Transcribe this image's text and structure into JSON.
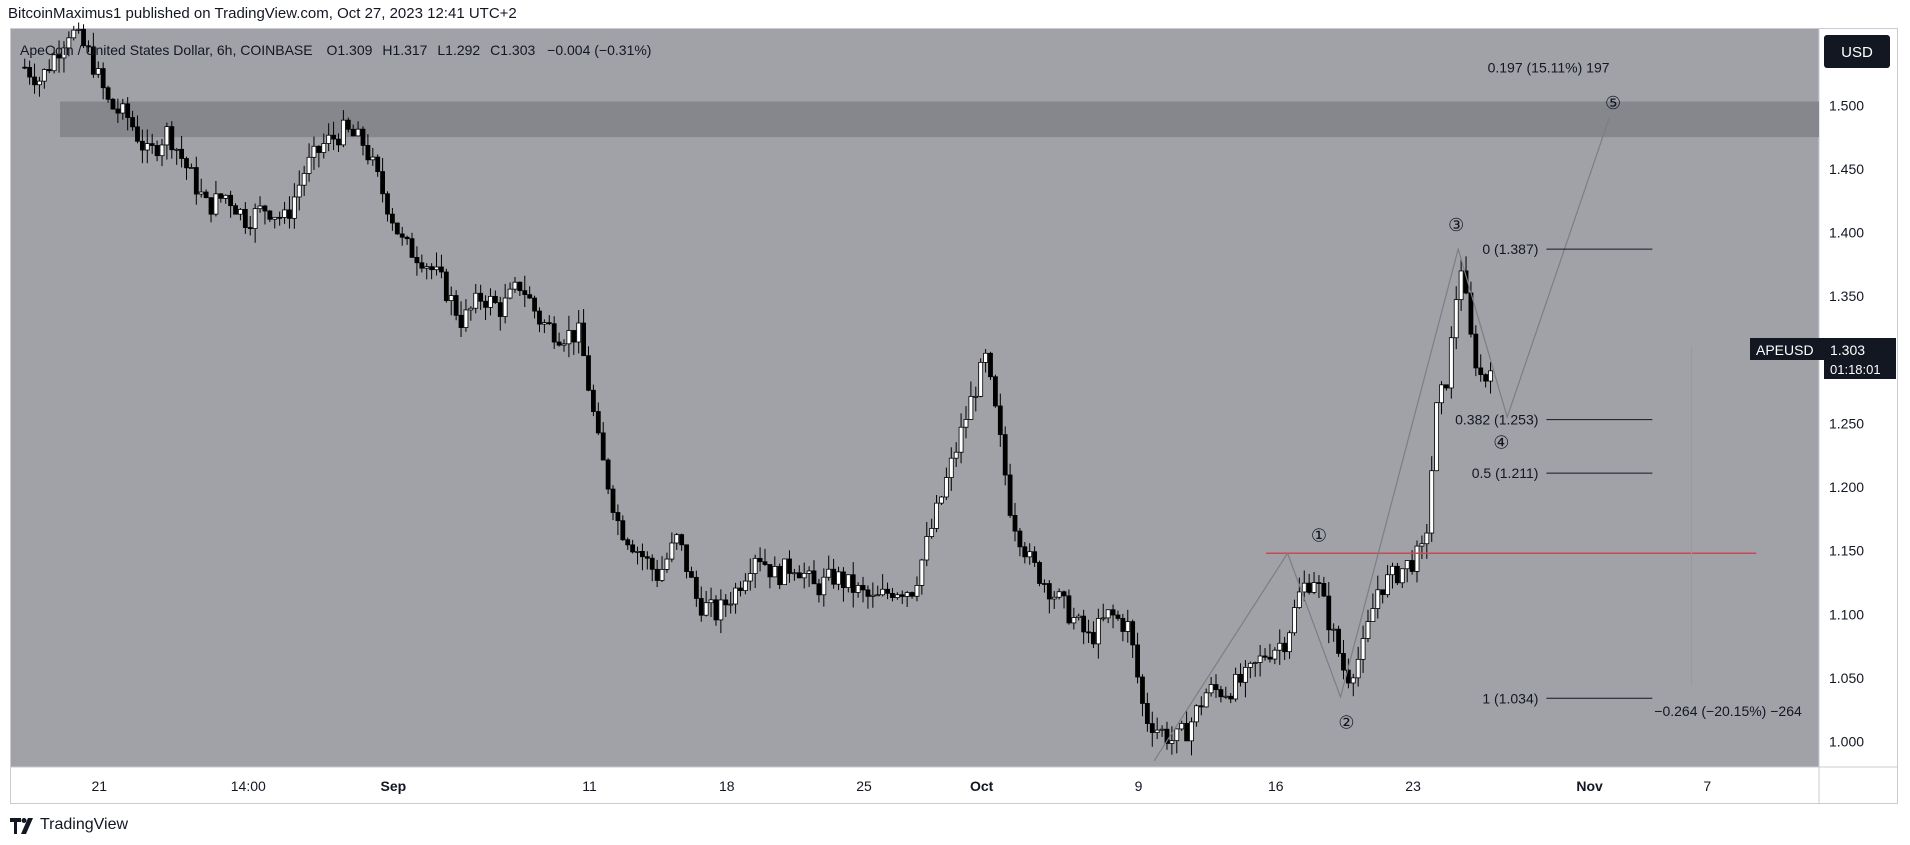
{
  "header": {
    "published_text": "BitcoinMaximus1 published on TradingView.com, Oct 27, 2023 12:41 UTC+2"
  },
  "symbol_info": {
    "name": "ApeCoin / United States Dollar, 6h, COINBASE",
    "open_label": "O",
    "open": "1.309",
    "high_label": "H",
    "high": "1.317",
    "low_label": "L",
    "low": "1.292",
    "close_label": "C",
    "close": "1.303",
    "change": "−0.004 (−0.31%)"
  },
  "currency_button": "USD",
  "price_tag": {
    "symbol": "APEUSD",
    "price": "1.303",
    "countdown": "01:18:01"
  },
  "footer": {
    "brand": "TradingView"
  },
  "colors": {
    "plot_bg": "#a1a2a7",
    "resistance_zone": "#86878c",
    "support_line": "#f23645",
    "axis_text": "#131722",
    "candle": "#000000"
  },
  "chart_data": {
    "type": "candlestick",
    "title": "ApeCoin / United States Dollar, 6h, COINBASE",
    "price_axis": {
      "ticks": [
        "1.500",
        "1.450",
        "1.400",
        "1.350",
        "1.300",
        "1.250",
        "1.200",
        "1.150",
        "1.100",
        "1.050",
        "1.000"
      ],
      "range": [
        0.98,
        1.56
      ]
    },
    "time_axis": {
      "ticks": [
        {
          "label": "21",
          "day": 21
        },
        {
          "label": "14:00",
          "day": 28.6
        },
        {
          "label": "Sep",
          "day": 36
        },
        {
          "label": "11",
          "day": 46
        },
        {
          "label": "18",
          "day": 53
        },
        {
          "label": "25",
          "day": 60
        },
        {
          "label": "Oct",
          "day": 66
        },
        {
          "label": "9",
          "day": 74
        },
        {
          "label": "16",
          "day": 81
        },
        {
          "label": "23",
          "day": 88
        },
        {
          "label": "Nov",
          "day": 97
        },
        {
          "label": "7",
          "day": 103
        }
      ],
      "range": [
        16.5,
        108.7
      ]
    },
    "price_path_day_close": [
      [
        17.2,
        1.53
      ],
      [
        18.0,
        1.52
      ],
      [
        19.5,
        1.56
      ],
      [
        20.5,
        1.54
      ],
      [
        21.5,
        1.5
      ],
      [
        22.5,
        1.49
      ],
      [
        23.5,
        1.46
      ],
      [
        24.5,
        1.48
      ],
      [
        25.5,
        1.45
      ],
      [
        26.5,
        1.42
      ],
      [
        27.5,
        1.43
      ],
      [
        28.5,
        1.41
      ],
      [
        29.5,
        1.42
      ],
      [
        30.5,
        1.41
      ],
      [
        31.5,
        1.45
      ],
      [
        32.5,
        1.47
      ],
      [
        33.5,
        1.48
      ],
      [
        34.5,
        1.47
      ],
      [
        35.5,
        1.43
      ],
      [
        36.5,
        1.39
      ],
      [
        37.5,
        1.38
      ],
      [
        38.5,
        1.36
      ],
      [
        39.5,
        1.33
      ],
      [
        40.5,
        1.35
      ],
      [
        41.5,
        1.34
      ],
      [
        42.5,
        1.36
      ],
      [
        43.5,
        1.33
      ],
      [
        44.5,
        1.32
      ],
      [
        45.5,
        1.32
      ],
      [
        46.5,
        1.23
      ],
      [
        47.5,
        1.17
      ],
      [
        48.5,
        1.15
      ],
      [
        49.5,
        1.13
      ],
      [
        50.5,
        1.16
      ],
      [
        51.5,
        1.11
      ],
      [
        52.5,
        1.1
      ],
      [
        53.5,
        1.12
      ],
      [
        54.5,
        1.15
      ],
      [
        55.5,
        1.13
      ],
      [
        56.5,
        1.14
      ],
      [
        57.5,
        1.12
      ],
      [
        58.5,
        1.13
      ],
      [
        59.5,
        1.12
      ],
      [
        60.5,
        1.11
      ],
      [
        61.5,
        1.12
      ],
      [
        62.5,
        1.12
      ],
      [
        63.5,
        1.17
      ],
      [
        64.5,
        1.22
      ],
      [
        65.5,
        1.27
      ],
      [
        66.2,
        1.3
      ],
      [
        66.8,
        1.25
      ],
      [
        67.5,
        1.18
      ],
      [
        68.5,
        1.14
      ],
      [
        69.5,
        1.12
      ],
      [
        70.5,
        1.1
      ],
      [
        71.5,
        1.08
      ],
      [
        72.5,
        1.1
      ],
      [
        73.5,
        1.09
      ],
      [
        74.3,
        1.02
      ],
      [
        75.0,
        1.01
      ],
      [
        75.8,
        1.0
      ],
      [
        76.5,
        1.01
      ],
      [
        77.5,
        1.04
      ],
      [
        78.5,
        1.04
      ],
      [
        79.5,
        1.05
      ],
      [
        80.5,
        1.07
      ],
      [
        81.5,
        1.08
      ],
      [
        82.3,
        1.12
      ],
      [
        83.0,
        1.13
      ],
      [
        83.8,
        1.09
      ],
      [
        84.6,
        1.05
      ],
      [
        85.4,
        1.07
      ],
      [
        86.2,
        1.12
      ],
      [
        87.0,
        1.13
      ],
      [
        87.8,
        1.14
      ],
      [
        88.6,
        1.15
      ],
      [
        89.2,
        1.26
      ],
      [
        89.8,
        1.29
      ],
      [
        90.4,
        1.38
      ],
      [
        91.0,
        1.31
      ],
      [
        91.6,
        1.28
      ],
      [
        92.0,
        1.303
      ]
    ],
    "resistance_zone": {
      "low": 1.475,
      "high": 1.503
    },
    "horizontal_line": {
      "price": 1.148,
      "from_day": 80.5,
      "to_day": 105.5
    },
    "wave_labels": [
      {
        "label": "①",
        "day": 83.2,
        "price": 1.162
      },
      {
        "label": "②",
        "day": 84.6,
        "price": 1.015
      },
      {
        "label": "③",
        "day": 90.2,
        "price": 1.406
      },
      {
        "label": "④",
        "day": 92.5,
        "price": 1.235
      },
      {
        "label": "⑤",
        "day": 98.2,
        "price": 1.502
      }
    ],
    "wave_path": [
      {
        "day": 74.8,
        "price": 0.985
      },
      {
        "day": 81.6,
        "price": 1.148
      },
      {
        "day": 84.3,
        "price": 1.035
      },
      {
        "day": 90.3,
        "price": 1.387
      },
      {
        "day": 92.8,
        "price": 1.255
      },
      {
        "day": 98.0,
        "price": 1.49
      }
    ],
    "fib_levels": [
      {
        "label": "0 (1.387)",
        "price": 1.387
      },
      {
        "label": "0.382 (1.253)",
        "price": 1.253
      },
      {
        "label": "0.5 (1.211)",
        "price": 1.211
      },
      {
        "label": "1 (1.034)",
        "price": 1.034
      }
    ],
    "fib_span": {
      "from_day": 94.8,
      "to_day": 100.2
    },
    "measure_up": {
      "text": "0.197 (15.11%) 197",
      "day": 91.8,
      "price": 1.526
    },
    "measure_down": {
      "text": "−0.264 (−20.15%) −264",
      "day": 100.3,
      "price": 1.02
    },
    "measure_line": {
      "day": 102.2,
      "from_price": 1.045,
      "to_price": 1.31
    }
  }
}
